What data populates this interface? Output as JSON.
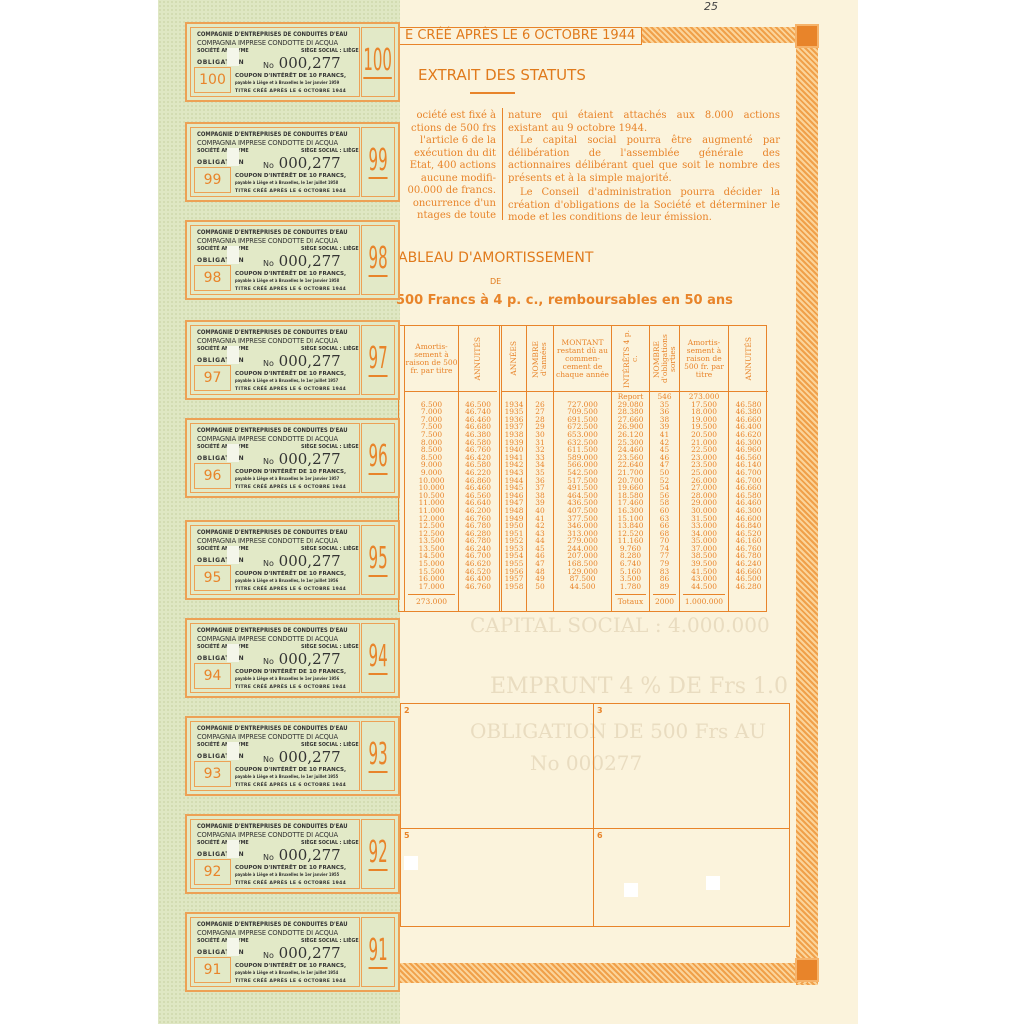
{
  "handwritten_note": "25",
  "header": {
    "banner": "E CRÉÉ APRÈS LE 6 OCTOBRE 1944"
  },
  "statuts": {
    "title": "EXTRAIT DES STATUTS",
    "left_lines": [
      "ociété est fixé à",
      "ctions de 500 frs",
      "l'article 6 de la",
      "exécution du dit",
      "Etat, 400 actions",
      "aucune modifi-",
      "00.000 de francs.",
      "oncurrence d'un",
      "ntages de toute"
    ],
    "right_paragraphs": [
      "nature qui étaient attachés aux 8.000 actions existant au 9 octobre 1944.",
      "Le capital social pourra être augmenté par délibération de l'assemblée générale des actionnaires délibérant quel que soit le nombre des présents et à la simple majorité.",
      "Le Conseil d'administration pourra décider la création d'obligations de la Société et déterminer le mode et les conditions de leur émission."
    ]
  },
  "amortissement": {
    "title": "ABLEAU D'AMORTISSEMENT",
    "de": "DE",
    "subtitle": "500 Francs à 4 p. c., remboursables en 50 ans",
    "headers": [
      "Amortis-sement à raison de 500 fr. par titre",
      "ANNUITÉS",
      "ANNÉES",
      "NOMBRE d'années",
      "MONTANT restant dû au commen-cement de chaque année",
      "INTÉRÊTS 4 p. c.",
      "NOMBRE d'obligations sorties",
      "Amortis-sement à raison de 500 fr. par titre",
      "ANNUITÉS"
    ],
    "report": {
      "label": "Report",
      "nombre": "546",
      "amortissement": "273.000"
    },
    "left_amortissement": [
      "6.500",
      "7.000",
      "7.000",
      "7.500",
      "7.500",
      "8.000",
      "8.500",
      "8.500",
      "9.000",
      "9.000",
      "10.000",
      "10.000",
      "10.500",
      "11.000",
      "11.000",
      "12.000",
      "12.500",
      "12.500",
      "13.500",
      "13.500",
      "14.500",
      "15.000",
      "15.500",
      "16.000",
      "17.000"
    ],
    "left_annuites": [
      "46.500",
      "46.740",
      "46.460",
      "46.680",
      "46.380",
      "46.580",
      "46.760",
      "46.420",
      "46.580",
      "46.220",
      "46.860",
      "46.460",
      "46.560",
      "46.640",
      "46.200",
      "46.760",
      "46.780",
      "46.280",
      "46.780",
      "46.240",
      "46.700",
      "46.620",
      "46.520",
      "46.400",
      "46.760"
    ],
    "annees": [
      "1934",
      "1935",
      "1936",
      "1937",
      "1938",
      "1939",
      "1940",
      "1941",
      "1942",
      "1943",
      "1944",
      "1945",
      "1946",
      "1947",
      "1948",
      "1949",
      "1950",
      "1951",
      "1952",
      "1953",
      "1954",
      "1955",
      "1956",
      "1957",
      "1958"
    ],
    "nombre_annees": [
      "26",
      "27",
      "28",
      "29",
      "30",
      "31",
      "32",
      "33",
      "34",
      "35",
      "36",
      "37",
      "38",
      "39",
      "40",
      "41",
      "42",
      "43",
      "44",
      "45",
      "46",
      "47",
      "48",
      "49",
      "50"
    ],
    "montant": [
      "727.000",
      "709.500",
      "691.500",
      "672.500",
      "653.000",
      "632.500",
      "611.500",
      "589.000",
      "566.000",
      "542.500",
      "517.500",
      "491.500",
      "464.500",
      "436.500",
      "407.500",
      "377.500",
      "346.000",
      "313.000",
      "279.000",
      "244.000",
      "207.000",
      "168.500",
      "129.000",
      "87.500",
      "44.500"
    ],
    "interets": [
      "29.080",
      "28.380",
      "27.660",
      "26.900",
      "26.120",
      "25.300",
      "24.460",
      "23.560",
      "22.640",
      "21.700",
      "20.700",
      "19.660",
      "18.580",
      "17.460",
      "16.300",
      "15.100",
      "13.840",
      "12.520",
      "11.160",
      "9.760",
      "8.280",
      "6.740",
      "5.160",
      "3.500",
      "1.780"
    ],
    "nombre_obligations": [
      "35",
      "36",
      "38",
      "39",
      "41",
      "42",
      "45",
      "46",
      "47",
      "50",
      "52",
      "54",
      "56",
      "58",
      "60",
      "63",
      "66",
      "68",
      "70",
      "74",
      "77",
      "79",
      "83",
      "86",
      "89"
    ],
    "right_amortissement": [
      "17.500",
      "18.000",
      "19.000",
      "19.500",
      "20.500",
      "21.000",
      "22.500",
      "23.000",
      "23.500",
      "25.000",
      "26.000",
      "27.000",
      "28.000",
      "29.000",
      "30.000",
      "31.500",
      "33.000",
      "34.000",
      "35.000",
      "37.000",
      "38.500",
      "39.500",
      "41.500",
      "43.000",
      "44.500"
    ],
    "right_annuites": [
      "46.580",
      "46.380",
      "46.660",
      "46.400",
      "46.620",
      "46.300",
      "46.960",
      "46.560",
      "46.140",
      "46.700",
      "46.700",
      "46.660",
      "46.580",
      "46.460",
      "46.300",
      "46.600",
      "46.840",
      "46.520",
      "46.160",
      "46.760",
      "46.780",
      "46.240",
      "46.660",
      "46.500",
      "46.280"
    ],
    "totals": {
      "left_amortissement": "273.000",
      "label": "Totaux",
      "nombre": "2000",
      "amortissement": "1.000.000"
    }
  },
  "show_through": [
    "CAPITAL SOCIAL : 4.000.000",
    "EMPRUNT 4 % DE Frs 1.0",
    "OBLIGATION DE 500 Frs AU",
    "No 000277"
  ],
  "boxes": [
    "2",
    "3",
    "5",
    "6"
  ],
  "coupon_common": {
    "company_fr": "COMPAGNIE D'ENTREPRISES DE CONDUITES D'EAU",
    "company_it": "COMPAGNIA IMPRESE CONDOTTE DI ACQUA",
    "societe": "SOCIÉTÉ ANONYME",
    "siege": "SIÈGE SOCIAL : LIÈGE",
    "obligation": "OBLIGATION",
    "number": "000,277",
    "number_prefix": "No",
    "interest": "COUPON D'INTÉRÊT DE 10 FRANCS,",
    "titre": "TITRE CRÉÉ APRÈS LE 6 OCTOBRE 1944"
  },
  "coupons": [
    {
      "num": "100",
      "payable": "payable à Liège et à Bruxelles le 1er janvier 1959"
    },
    {
      "num": "99",
      "payable": "payable à Liège et à Bruxelles, le 1er juillet 1958"
    },
    {
      "num": "98",
      "payable": "payable à Liège et à Bruxelles le 1er janvier 1958"
    },
    {
      "num": "97",
      "payable": "payable à Liège et à Bruxelles, le 1er juillet 1957"
    },
    {
      "num": "96",
      "payable": "payable à Liège et à Bruxelles le 1er janvier 1957"
    },
    {
      "num": "95",
      "payable": "payable à Liège et à Bruxelles, le 1er juillet 1956"
    },
    {
      "num": "94",
      "payable": "payable à Liège et à Bruxelles le 1er janvier 1956"
    },
    {
      "num": "93",
      "payable": "payable à Liège et à Bruxelles, le 1er juillet 1955"
    },
    {
      "num": "92",
      "payable": "payable à Liège et à Bruxelles le 1er janvier 1955"
    },
    {
      "num": "91",
      "payable": "payable à Liège et à Bruxelles, le 1er juillet 1954"
    }
  ],
  "colors": {
    "ink": "#e8842a",
    "paper": "#fbf3dc",
    "coupon_paper": "#dfe7c3",
    "text_dark": "#333333"
  }
}
